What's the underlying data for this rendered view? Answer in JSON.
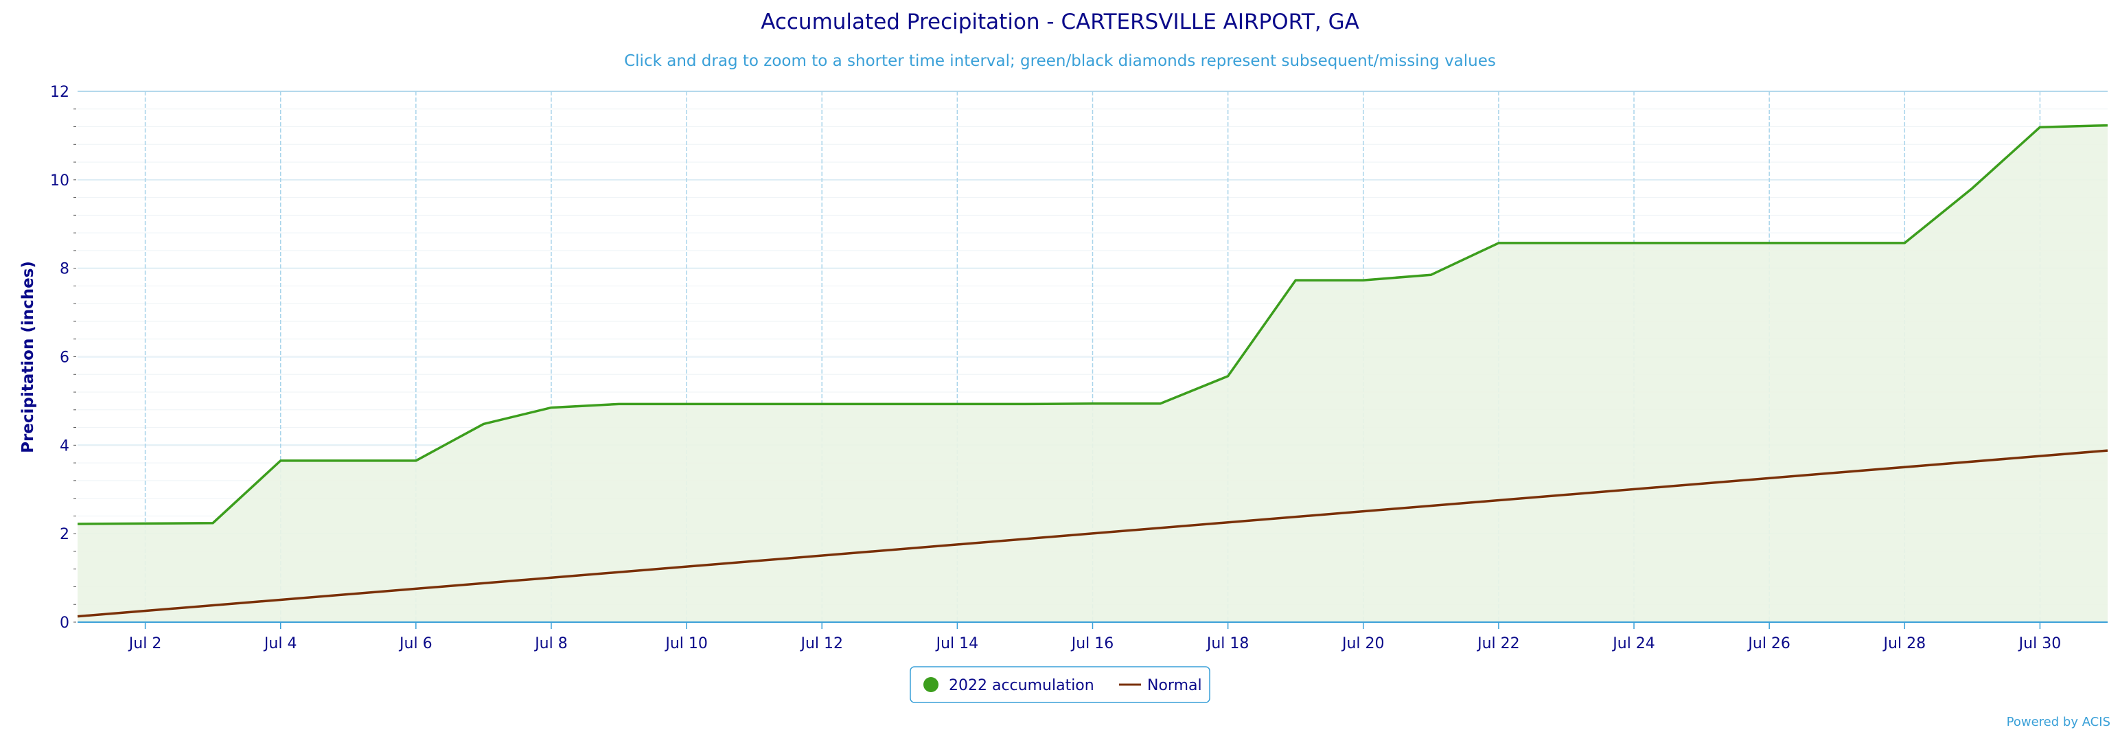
{
  "colors": {
    "accumulation": "#3c9e1d",
    "accumulation_fill": "#eaf4e4",
    "normal": "#7a3008",
    "grid": "#a9d4ea",
    "title": "#0a0a8a",
    "subtitle": "#3aa0d8",
    "axis_line": "#3aa0d8"
  },
  "credit": "Powered by ACIS",
  "chart_data": {
    "type": "area",
    "title": "Accumulated Precipitation - CARTERSVILLE AIRPORT, GA",
    "subtitle": "Click and drag to zoom to a shorter time interval; green/black diamonds represent subsequent/missing values",
    "xlabel": "",
    "ylabel": "Precipitation (inches)",
    "ylim": [
      0,
      12
    ],
    "yticks": [
      0,
      2,
      4,
      6,
      8,
      10,
      12
    ],
    "x_axis": "days of July 2022",
    "xlim": [
      1,
      31
    ],
    "xticks": [
      {
        "day": 2,
        "label": "Jul 2"
      },
      {
        "day": 4,
        "label": "Jul 4"
      },
      {
        "day": 6,
        "label": "Jul 6"
      },
      {
        "day": 8,
        "label": "Jul 8"
      },
      {
        "day": 10,
        "label": "Jul 10"
      },
      {
        "day": 12,
        "label": "Jul 12"
      },
      {
        "day": 14,
        "label": "Jul 14"
      },
      {
        "day": 16,
        "label": "Jul 16"
      },
      {
        "day": 18,
        "label": "Jul 18"
      },
      {
        "day": 20,
        "label": "Jul 20"
      },
      {
        "day": 22,
        "label": "Jul 22"
      },
      {
        "day": 24,
        "label": "Jul 24"
      },
      {
        "day": 26,
        "label": "Jul 26"
      },
      {
        "day": 28,
        "label": "Jul 28"
      },
      {
        "day": 30,
        "label": "Jul 30"
      }
    ],
    "grid": true,
    "legend_position": "bottom-center",
    "series": [
      {
        "name": "2022 accumulation",
        "style": "area",
        "x": [
          1,
          2,
          3,
          4,
          5,
          6,
          7,
          8,
          9,
          10,
          11,
          12,
          13,
          14,
          15,
          16,
          17,
          18,
          19,
          20,
          21,
          22,
          23,
          24,
          25,
          26,
          27,
          28,
          29,
          30,
          31
        ],
        "values": [
          2.22,
          2.23,
          2.24,
          3.65,
          3.65,
          3.65,
          4.48,
          4.85,
          4.93,
          4.93,
          4.93,
          4.93,
          4.93,
          4.93,
          4.93,
          4.94,
          4.94,
          5.56,
          7.73,
          7.73,
          7.85,
          8.57,
          8.57,
          8.57,
          8.57,
          8.57,
          8.57,
          8.57,
          9.81,
          11.19,
          11.23
        ]
      },
      {
        "name": "Normal",
        "style": "line",
        "x": [
          1,
          31
        ],
        "values": [
          0.13,
          3.88
        ]
      }
    ]
  }
}
